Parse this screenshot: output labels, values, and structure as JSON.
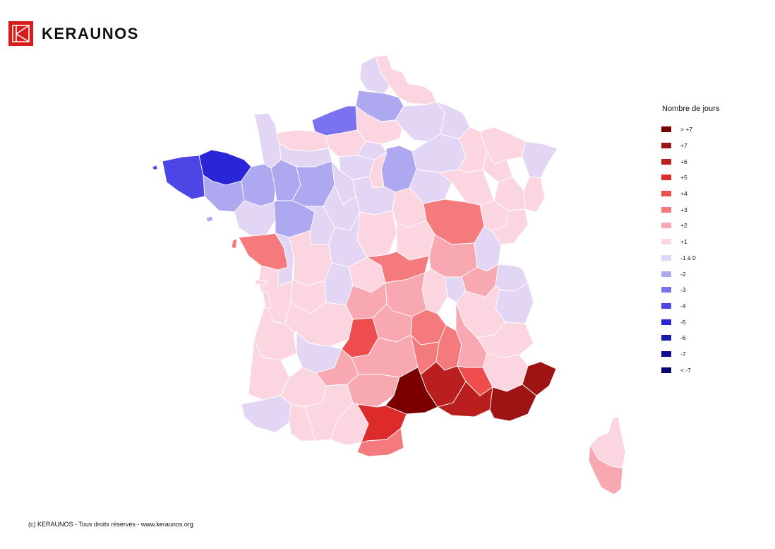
{
  "brand": {
    "name": "KERAUNOS"
  },
  "legend": {
    "title": "Nombre de jours",
    "items": [
      {
        "label": "> +7",
        "color": "#7a0000"
      },
      {
        "label": "+7",
        "color": "#9e1313"
      },
      {
        "label": "+6",
        "color": "#bb1e1e"
      },
      {
        "label": "+5",
        "color": "#dd2b2b"
      },
      {
        "label": "+4",
        "color": "#ee4d4d"
      },
      {
        "label": "+3",
        "color": "#f57a7d"
      },
      {
        "label": "+2",
        "color": "#f7a8b0"
      },
      {
        "label": "+1",
        "color": "#fbd5e0"
      },
      {
        "label": "-1 à 0",
        "color": "#e3d6f5"
      },
      {
        "label": "-2",
        "color": "#aea8f1"
      },
      {
        "label": "-3",
        "color": "#7a72ee"
      },
      {
        "label": "-4",
        "color": "#4d46e6"
      },
      {
        "label": "-5",
        "color": "#2b25d8"
      },
      {
        "label": "-6",
        "color": "#1a18b0"
      },
      {
        "label": "-7",
        "color": "#0f0e90"
      },
      {
        "label": "< -7",
        "color": "#07066c"
      }
    ]
  },
  "footer": {
    "text": "(c) KERAUNOS - Tous droits réservés - www.keraunos.org"
  }
}
